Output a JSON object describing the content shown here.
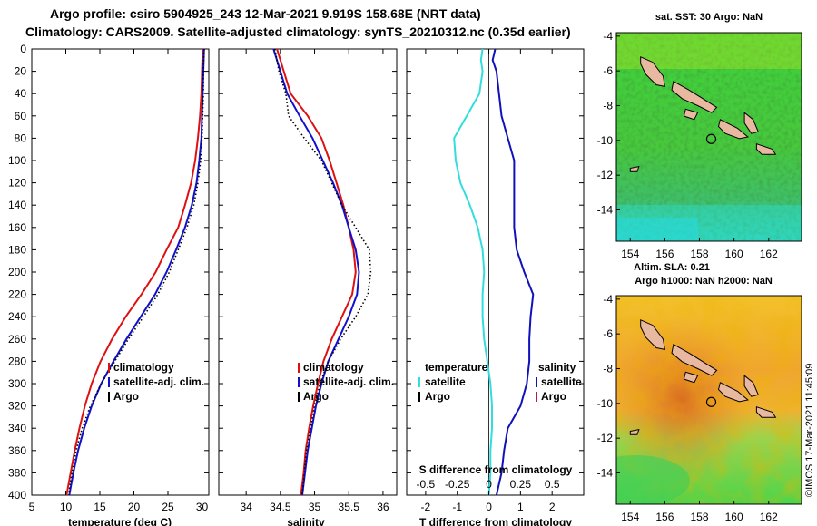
{
  "title_line1": "Argo profile: csiro 5904925_243 12-Mar-2021 9.919S 158.68E (NRT data)",
  "title_line2": "Climatology: CARS2009. Satellite-adjusted climatology: synTS_20210312.nc (0.35d earlier)",
  "colors": {
    "climatology": "#dd1111",
    "satellite": "#1111cc",
    "argo": "#000000",
    "temperature_diff": "#33dddd",
    "salinity_diff": "#1111bb"
  },
  "chart_data": [
    {
      "type": "line",
      "name": "temperature-profile",
      "xlabel": "temperature (deg C)",
      "ylabel": "",
      "xlim": [
        5,
        31
      ],
      "ylim": [
        400,
        0
      ],
      "xticks": [
        "5",
        "10",
        "15",
        "20",
        "25",
        "30"
      ],
      "yticks": [
        "0",
        "20",
        "40",
        "60",
        "80",
        "100",
        "120",
        "140",
        "160",
        "180",
        "200",
        "220",
        "240",
        "260",
        "280",
        "300",
        "320",
        "340",
        "360",
        "380",
        "400"
      ],
      "legend": [
        {
          "label": "climatology",
          "color": "#dd1111"
        },
        {
          "label": "satellite-adj. clim.",
          "color": "#1111cc"
        },
        {
          "label": "Argo",
          "color": "#000000"
        }
      ],
      "series": [
        {
          "name": "climatology",
          "color": "#dd1111",
          "style": "solid",
          "points": [
            [
              30.1,
              0
            ],
            [
              30,
              20
            ],
            [
              29.9,
              40
            ],
            [
              29.7,
              60
            ],
            [
              29.4,
              80
            ],
            [
              29,
              100
            ],
            [
              28.4,
              120
            ],
            [
              27.5,
              140
            ],
            [
              26.5,
              160
            ],
            [
              24.8,
              180
            ],
            [
              23.2,
              200
            ],
            [
              21.1,
              220
            ],
            [
              18.8,
              240
            ],
            [
              16.8,
              260
            ],
            [
              15.1,
              280
            ],
            [
              13.8,
              300
            ],
            [
              12.8,
              320
            ],
            [
              12,
              340
            ],
            [
              11.3,
              360
            ],
            [
              10.7,
              380
            ],
            [
              10.1,
              400
            ]
          ]
        },
        {
          "name": "satellite-adj. clim.",
          "color": "#1111cc",
          "style": "solid",
          "points": [
            [
              30.3,
              0
            ],
            [
              30.2,
              20
            ],
            [
              30.1,
              40
            ],
            [
              30,
              60
            ],
            [
              29.9,
              80
            ],
            [
              29.6,
              100
            ],
            [
              29.2,
              120
            ],
            [
              28.5,
              140
            ],
            [
              27.5,
              160
            ],
            [
              26.2,
              180
            ],
            [
              24.8,
              200
            ],
            [
              23.1,
              220
            ],
            [
              21,
              240
            ],
            [
              18.9,
              260
            ],
            [
              17,
              280
            ],
            [
              15.2,
              300
            ],
            [
              13.8,
              320
            ],
            [
              12.7,
              340
            ],
            [
              11.8,
              360
            ],
            [
              11.1,
              380
            ],
            [
              10.5,
              400
            ]
          ]
        },
        {
          "name": "Argo",
          "color": "#000000",
          "style": "dotted",
          "points": [
            [
              30.3,
              0
            ],
            [
              30.2,
              20
            ],
            [
              30.2,
              40
            ],
            [
              30.1,
              60
            ],
            [
              30,
              80
            ],
            [
              29.8,
              100
            ],
            [
              29.4,
              120
            ],
            [
              28.8,
              140
            ],
            [
              27.8,
              160
            ],
            [
              26.5,
              180
            ],
            [
              25.2,
              200
            ],
            [
              23.5,
              220
            ],
            [
              21.4,
              240
            ],
            [
              19.2,
              260
            ],
            [
              17.2,
              280
            ],
            [
              15.2,
              300
            ],
            [
              13.6,
              320
            ],
            [
              12.4,
              340
            ],
            [
              11.5,
              360
            ],
            [
              10.9,
              380
            ],
            [
              10.4,
              400
            ]
          ]
        }
      ]
    },
    {
      "type": "line",
      "name": "salinity-profile",
      "xlabel": "salinity",
      "xlim": [
        33.6,
        36.2
      ],
      "ylim": [
        400,
        0
      ],
      "xticks": [
        "34",
        "34.5",
        "35",
        "35.5",
        "36"
      ],
      "legend": [
        {
          "label": "climatology",
          "color": "#dd1111"
        },
        {
          "label": "satellite-adj. clim.",
          "color": "#1111cc"
        },
        {
          "label": "Argo",
          "color": "#000000"
        }
      ],
      "series": [
        {
          "name": "climatology",
          "color": "#dd1111",
          "style": "solid",
          "points": [
            [
              34.45,
              0
            ],
            [
              34.55,
              20
            ],
            [
              34.65,
              40
            ],
            [
              34.9,
              60
            ],
            [
              35.1,
              80
            ],
            [
              35.22,
              100
            ],
            [
              35.32,
              120
            ],
            [
              35.42,
              140
            ],
            [
              35.5,
              160
            ],
            [
              35.57,
              180
            ],
            [
              35.6,
              200
            ],
            [
              35.55,
              220
            ],
            [
              35.4,
              240
            ],
            [
              35.25,
              260
            ],
            [
              35.13,
              280
            ],
            [
              35.05,
              300
            ],
            [
              34.98,
              320
            ],
            [
              34.92,
              340
            ],
            [
              34.87,
              360
            ],
            [
              34.84,
              380
            ],
            [
              34.8,
              400
            ]
          ]
        },
        {
          "name": "satellite-adj. clim.",
          "color": "#1111cc",
          "style": "solid",
          "points": [
            [
              34.4,
              0
            ],
            [
              34.5,
              20
            ],
            [
              34.6,
              40
            ],
            [
              34.78,
              60
            ],
            [
              34.97,
              80
            ],
            [
              35.12,
              100
            ],
            [
              35.27,
              120
            ],
            [
              35.4,
              140
            ],
            [
              35.5,
              160
            ],
            [
              35.6,
              180
            ],
            [
              35.65,
              200
            ],
            [
              35.62,
              220
            ],
            [
              35.5,
              240
            ],
            [
              35.35,
              260
            ],
            [
              35.2,
              280
            ],
            [
              35.1,
              300
            ],
            [
              35.02,
              320
            ],
            [
              34.96,
              340
            ],
            [
              34.9,
              360
            ],
            [
              34.86,
              380
            ],
            [
              34.82,
              400
            ]
          ]
        },
        {
          "name": "Argo",
          "color": "#000000",
          "style": "dotted",
          "points": [
            [
              34.42,
              0
            ],
            [
              34.48,
              20
            ],
            [
              34.58,
              40
            ],
            [
              34.62,
              60
            ],
            [
              34.85,
              80
            ],
            [
              35.1,
              100
            ],
            [
              35.25,
              120
            ],
            [
              35.4,
              140
            ],
            [
              35.6,
              160
            ],
            [
              35.8,
              180
            ],
            [
              35.82,
              200
            ],
            [
              35.78,
              220
            ],
            [
              35.6,
              240
            ],
            [
              35.38,
              260
            ],
            [
              35.2,
              280
            ],
            [
              35.08,
              300
            ],
            [
              35,
              320
            ],
            [
              34.94,
              340
            ],
            [
              34.88,
              360
            ],
            [
              34.85,
              380
            ],
            [
              34.82,
              400
            ]
          ]
        }
      ]
    },
    {
      "type": "line",
      "name": "difference-profile",
      "xlabel": "T difference from climatology",
      "x2label": "S difference from climatology",
      "xlim": [
        -2.6,
        3
      ],
      "x2lim": [
        -0.65,
        0.75
      ],
      "ylim": [
        400,
        0
      ],
      "xticks": [
        "-2",
        "-1",
        "0",
        "1",
        "2"
      ],
      "x2ticks": [
        "-0.5",
        "-0.25",
        "0",
        "0.25",
        "0.5"
      ],
      "legend_left_title": "temperature",
      "legend_right_title": "salinity",
      "legend": [
        {
          "label": "satellite",
          "color": "#33dddd",
          "side": "left"
        },
        {
          "label": "Argo",
          "color": "#000000",
          "side": "left"
        },
        {
          "label": "satellite",
          "color": "#1111bb",
          "side": "right"
        },
        {
          "label": "Argo",
          "color": "#aa2255",
          "side": "right"
        }
      ],
      "series": [
        {
          "name": "temperature satellite",
          "color": "#33dddd",
          "axis": "T",
          "points": [
            [
              -0.2,
              0
            ],
            [
              -0.25,
              10
            ],
            [
              -0.2,
              20
            ],
            [
              -0.3,
              40
            ],
            [
              -0.7,
              60
            ],
            [
              -1.1,
              80
            ],
            [
              -1.05,
              100
            ],
            [
              -0.9,
              120
            ],
            [
              -0.6,
              140
            ],
            [
              -0.35,
              160
            ],
            [
              -0.2,
              180
            ],
            [
              -0.15,
              200
            ],
            [
              -0.2,
              220
            ],
            [
              -0.2,
              240
            ],
            [
              -0.15,
              260
            ],
            [
              -0.05,
              280
            ],
            [
              0.05,
              300
            ],
            [
              0.1,
              320
            ],
            [
              0.1,
              340
            ],
            [
              0.05,
              360
            ],
            [
              0.05,
              380
            ],
            [
              0,
              400
            ]
          ]
        },
        {
          "name": "salinity satellite",
          "color": "#1111bb",
          "axis": "S",
          "points": [
            [
              0.05,
              0
            ],
            [
              0.03,
              10
            ],
            [
              0.06,
              20
            ],
            [
              0.08,
              40
            ],
            [
              0.1,
              60
            ],
            [
              0.15,
              80
            ],
            [
              0.2,
              100
            ],
            [
              0.2,
              120
            ],
            [
              0.2,
              140
            ],
            [
              0.2,
              160
            ],
            [
              0.22,
              180
            ],
            [
              0.28,
              200
            ],
            [
              0.35,
              220
            ],
            [
              0.33,
              240
            ],
            [
              0.32,
              260
            ],
            [
              0.32,
              280
            ],
            [
              0.3,
              300
            ],
            [
              0.25,
              320
            ],
            [
              0.15,
              340
            ],
            [
              0.12,
              360
            ],
            [
              0.1,
              380
            ],
            [
              0.06,
              400
            ]
          ]
        }
      ]
    },
    {
      "type": "heatmap",
      "name": "sst-map",
      "title": "sat. SST: 30 Argo: NaN",
      "xticks": [
        "154",
        "156",
        "158",
        "160",
        "162"
      ],
      "yticks": [
        "-4",
        "-6",
        "-8",
        "-10",
        "-12",
        "-14"
      ],
      "xlim": [
        153.2,
        163.9
      ],
      "ylim": [
        -15.8,
        -3.8
      ],
      "profile_location": [
        158.68,
        -9.919
      ]
    },
    {
      "type": "heatmap",
      "name": "sla-map",
      "title_line1": "Altim. SLA: 0.21",
      "title_line2": "Argo h1000: NaN h2000: NaN",
      "xticks": [
        "154",
        "156",
        "158",
        "160",
        "162"
      ],
      "yticks": [
        "-4",
        "-6",
        "-8",
        "-10",
        "-12",
        "-14"
      ],
      "xlim": [
        153.2,
        163.9
      ],
      "ylim": [
        -15.8,
        -3.8
      ],
      "profile_location": [
        158.68,
        -9.919
      ]
    }
  ],
  "stamp": "©IMOS 17-Mar-2021 11:45:09"
}
